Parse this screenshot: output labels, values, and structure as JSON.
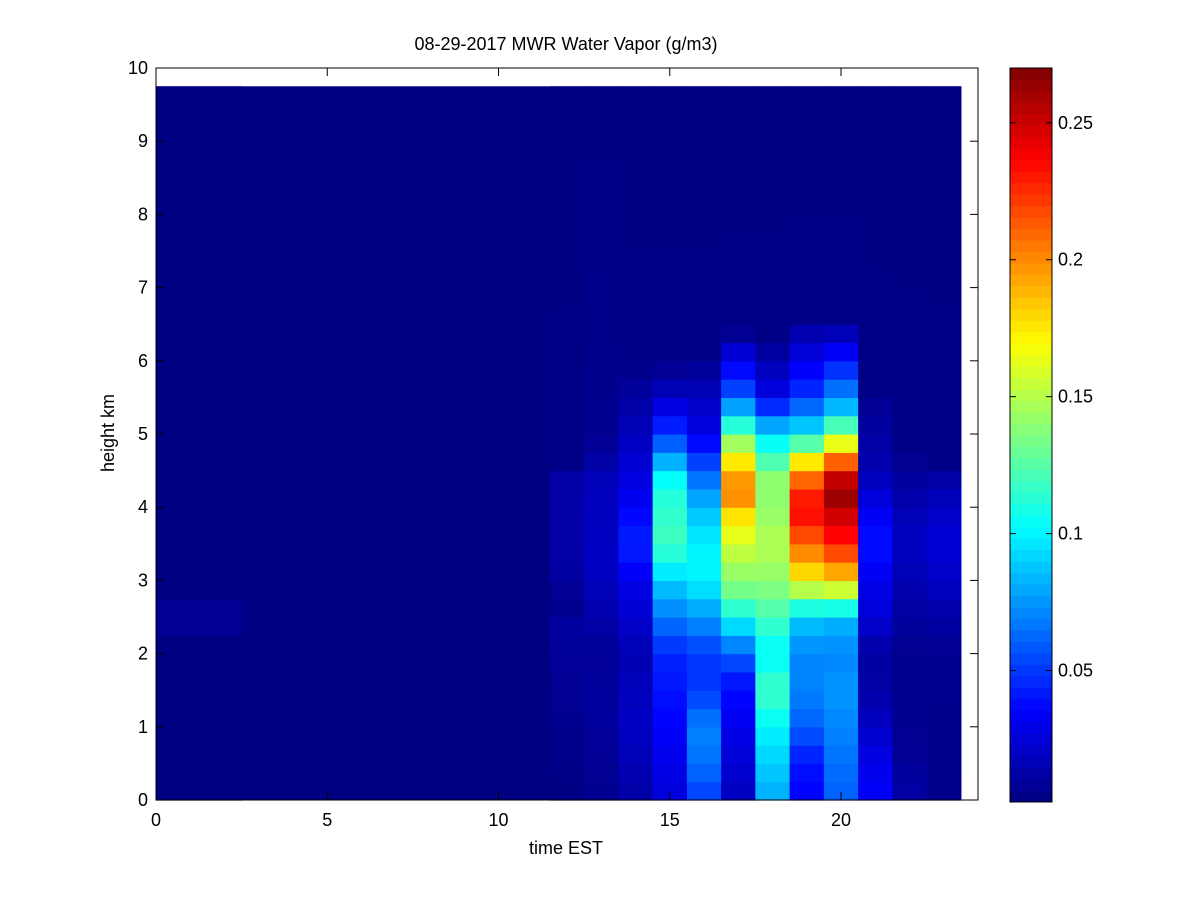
{
  "chart_data": {
    "type": "heatmap",
    "title": "08-29-2017 MWR Water Vapor (g/m3)",
    "xlabel": "time EST",
    "ylabel": "height km",
    "xlim": [
      0,
      24
    ],
    "ylim": [
      0,
      10
    ],
    "data_x_range": [
      0,
      23.5
    ],
    "data_y_top": 9.75,
    "xticks": [
      0,
      5,
      10,
      15,
      20
    ],
    "yticks": [
      0,
      1,
      2,
      3,
      4,
      5,
      6,
      7,
      8,
      9,
      10
    ],
    "colormap": "jet",
    "clim": [
      0.002,
      0.27
    ],
    "colorbar_ticks": [
      0.05,
      0.1,
      0.15,
      0.2,
      0.25
    ],
    "background_value": 0.003,
    "columns": [
      {
        "x_start": 0,
        "x_end": 2.5,
        "profile": [
          [
            0,
            0.003
          ],
          [
            2.25,
            0.003
          ],
          [
            2.5,
            0.012
          ],
          [
            2.75,
            0.003
          ],
          [
            9.75,
            0.003
          ]
        ]
      },
      {
        "x_start": 11.5,
        "x_end": 12.5,
        "profile": [
          [
            0,
            0.003
          ],
          [
            2.4,
            0.01
          ],
          [
            2.7,
            0.005
          ],
          [
            3.2,
            0.012
          ],
          [
            4.4,
            0.012
          ],
          [
            4.5,
            0.004
          ],
          [
            9.75,
            0.003
          ]
        ]
      },
      {
        "x_start": 12.5,
        "x_end": 13.5,
        "profile": [
          [
            0,
            0.006
          ],
          [
            1.3,
            0.01
          ],
          [
            2.0,
            0.008
          ],
          [
            3.2,
            0.02
          ],
          [
            4.3,
            0.018
          ],
          [
            5.0,
            0.006
          ],
          [
            9.75,
            0.003
          ]
        ]
      },
      {
        "x_start": 13.5,
        "x_end": 14.5,
        "profile": [
          [
            0,
            0.012
          ],
          [
            1.0,
            0.02
          ],
          [
            2.0,
            0.015
          ],
          [
            3.0,
            0.03
          ],
          [
            3.5,
            0.045
          ],
          [
            4.2,
            0.03
          ],
          [
            5.4,
            0.012
          ],
          [
            6.0,
            0.004
          ],
          [
            9.75,
            0.003
          ]
        ]
      },
      {
        "x_start": 14.5,
        "x_end": 15.5,
        "profile": [
          [
            0,
            0.025
          ],
          [
            1.0,
            0.035
          ],
          [
            2.0,
            0.045
          ],
          [
            3.0,
            0.09
          ],
          [
            3.5,
            0.12
          ],
          [
            4.3,
            0.11
          ],
          [
            5.0,
            0.05
          ],
          [
            5.5,
            0.02
          ],
          [
            6.0,
            0.004
          ],
          [
            9.75,
            0.003
          ]
        ]
      },
      {
        "x_start": 15.5,
        "x_end": 16.5,
        "profile": [
          [
            0,
            0.05
          ],
          [
            0.5,
            0.065
          ],
          [
            1.0,
            0.07
          ],
          [
            1.5,
            0.05
          ],
          [
            2.0,
            0.05
          ],
          [
            2.6,
            0.08
          ],
          [
            3.0,
            0.1
          ],
          [
            3.5,
            0.1
          ],
          [
            4.0,
            0.085
          ],
          [
            4.5,
            0.06
          ],
          [
            5.0,
            0.03
          ],
          [
            5.8,
            0.012
          ],
          [
            6.0,
            0.004
          ],
          [
            9.75,
            0.003
          ]
        ]
      },
      {
        "x_start": 16.5,
        "x_end": 17.5,
        "profile": [
          [
            0,
            0.018
          ],
          [
            1.0,
            0.03
          ],
          [
            1.6,
            0.04
          ],
          [
            2.0,
            0.06
          ],
          [
            2.8,
            0.13
          ],
          [
            3.3,
            0.15
          ],
          [
            3.8,
            0.17
          ],
          [
            4.2,
            0.205
          ],
          [
            4.5,
            0.19
          ],
          [
            5.0,
            0.13
          ],
          [
            5.5,
            0.06
          ],
          [
            6.0,
            0.03
          ],
          [
            6.3,
            0.015
          ],
          [
            6.4,
            0.004
          ],
          [
            9.75,
            0.003
          ]
        ]
      },
      {
        "x_start": 17.5,
        "x_end": 18.5,
        "profile": [
          [
            0,
            0.08
          ],
          [
            0.5,
            0.09
          ],
          [
            1.0,
            0.1
          ],
          [
            1.5,
            0.12
          ],
          [
            2.0,
            0.1
          ],
          [
            3.0,
            0.14
          ],
          [
            3.5,
            0.15
          ],
          [
            4.0,
            0.14
          ],
          [
            4.4,
            0.14
          ],
          [
            5.0,
            0.095
          ],
          [
            5.5,
            0.03
          ],
          [
            6.0,
            0.015
          ],
          [
            6.3,
            0.004
          ],
          [
            9.75,
            0.003
          ]
        ]
      },
      {
        "x_start": 18.5,
        "x_end": 19.5,
        "profile": [
          [
            0,
            0.035
          ],
          [
            0.5,
            0.04
          ],
          [
            1.0,
            0.06
          ],
          [
            1.5,
            0.07
          ],
          [
            2.0,
            0.07
          ],
          [
            2.5,
            0.09
          ],
          [
            3.0,
            0.17
          ],
          [
            3.5,
            0.21
          ],
          [
            4.0,
            0.24
          ],
          [
            4.5,
            0.2
          ],
          [
            5.0,
            0.1
          ],
          [
            5.5,
            0.05
          ],
          [
            6.0,
            0.03
          ],
          [
            6.5,
            0.01
          ],
          [
            6.55,
            0.004
          ],
          [
            9.75,
            0.003
          ]
        ]
      },
      {
        "x_start": 19.5,
        "x_end": 20.5,
        "profile": [
          [
            0,
            0.06
          ],
          [
            0.5,
            0.065
          ],
          [
            1.0,
            0.07
          ],
          [
            1.5,
            0.075
          ],
          [
            2.0,
            0.07
          ],
          [
            2.5,
            0.085
          ],
          [
            3.0,
            0.18
          ],
          [
            3.5,
            0.23
          ],
          [
            4.0,
            0.255
          ],
          [
            4.25,
            0.27
          ],
          [
            4.5,
            0.235
          ],
          [
            5.0,
            0.14
          ],
          [
            5.4,
            0.08
          ],
          [
            6.0,
            0.04
          ],
          [
            6.3,
            0.025
          ],
          [
            6.5,
            0.004
          ],
          [
            9.75,
            0.003
          ]
        ]
      },
      {
        "x_start": 20.5,
        "x_end": 21.5,
        "profile": [
          [
            0,
            0.035
          ],
          [
            0.5,
            0.03
          ],
          [
            1.0,
            0.02
          ],
          [
            1.5,
            0.012
          ],
          [
            2.0,
            0.01
          ],
          [
            2.5,
            0.025
          ],
          [
            3.0,
            0.03
          ],
          [
            3.5,
            0.04
          ],
          [
            4.0,
            0.03
          ],
          [
            4.5,
            0.015
          ],
          [
            5.4,
            0.008
          ],
          [
            5.5,
            0.004
          ],
          [
            9.75,
            0.003
          ]
        ]
      },
      {
        "x_start": 21.5,
        "x_end": 22.5,
        "profile": [
          [
            0,
            0.012
          ],
          [
            1.0,
            0.006
          ],
          [
            2.0,
            0.006
          ],
          [
            2.5,
            0.01
          ],
          [
            3.0,
            0.015
          ],
          [
            3.5,
            0.02
          ],
          [
            4.0,
            0.015
          ],
          [
            4.4,
            0.01
          ],
          [
            4.8,
            0.004
          ],
          [
            9.75,
            0.003
          ]
        ]
      },
      {
        "x_start": 22.5,
        "x_end": 23.5,
        "profile": [
          [
            0,
            0.005
          ],
          [
            2.0,
            0.006
          ],
          [
            2.5,
            0.012
          ],
          [
            3.0,
            0.02
          ],
          [
            3.5,
            0.025
          ],
          [
            4.0,
            0.02
          ],
          [
            4.4,
            0.012
          ],
          [
            4.6,
            0.004
          ],
          [
            9.75,
            0.003
          ]
        ]
      }
    ]
  }
}
